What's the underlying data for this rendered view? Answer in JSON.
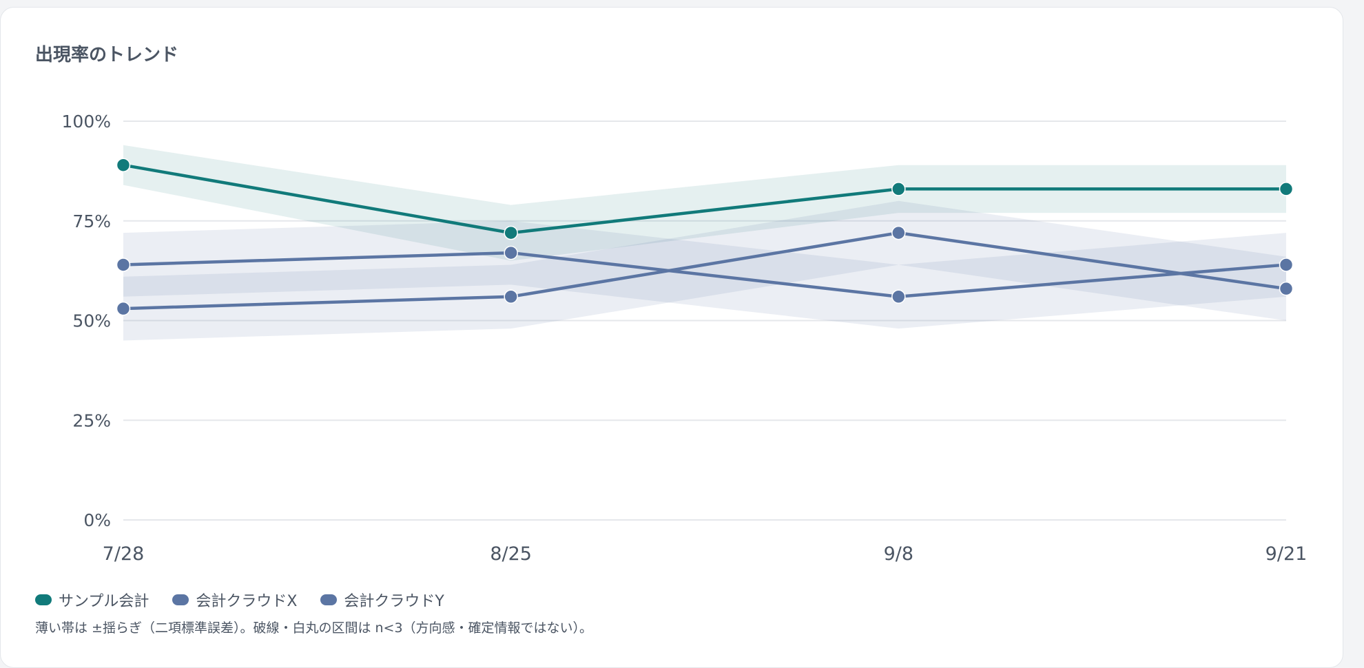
{
  "card": {
    "title": "出現率のトレンド"
  },
  "chart_data": {
    "type": "line",
    "categories": [
      "7/28",
      "8/25",
      "9/8",
      "9/21"
    ],
    "ylim": [
      0,
      100
    ],
    "yticks": [
      0,
      25,
      50,
      75,
      100
    ],
    "ytick_labels": [
      "0%",
      "25%",
      "50%",
      "75%",
      "100%"
    ],
    "grid": true,
    "legend_position": "bottom-left",
    "series": [
      {
        "name": "サンプル会計",
        "color": "#117a7a",
        "values": [
          89,
          72,
          83,
          83
        ],
        "band_lower": [
          84,
          65,
          77,
          77
        ],
        "band_upper": [
          94,
          79,
          89,
          89
        ]
      },
      {
        "name": "会計クラウドX",
        "color": "#5b75a3",
        "values": [
          64,
          67,
          56,
          64
        ],
        "band_lower": [
          56,
          59,
          48,
          56
        ],
        "band_upper": [
          72,
          75,
          64,
          72
        ]
      },
      {
        "name": "会計クラウドY",
        "color": "#5b75a3",
        "values": [
          53,
          56,
          72,
          58
        ],
        "band_lower": [
          45,
          48,
          64,
          50
        ],
        "band_upper": [
          61,
          64,
          80,
          66
        ]
      }
    ]
  },
  "note": "薄い帯は ±揺らぎ（二項標準誤差）。破線・白丸の区間は n<3（方向感・確定情報ではない）。"
}
